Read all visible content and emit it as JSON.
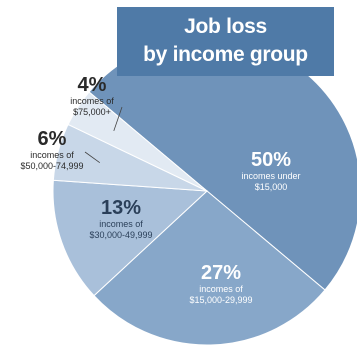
{
  "chart_data": {
    "type": "pie",
    "title_lines": [
      "Job loss",
      "by income group"
    ],
    "slices": [
      {
        "value": 50,
        "pct_label": "50%",
        "label_lines": [
          "incomes under",
          "$15,000"
        ],
        "color": "#6f93ba",
        "text_color": "#ffffff"
      },
      {
        "value": 27,
        "pct_label": "27%",
        "label_lines": [
          "incomes of",
          "$15,000-29,999"
        ],
        "color": "#87a7c9",
        "text_color": "#ffffff"
      },
      {
        "value": 13,
        "pct_label": "13%",
        "label_lines": [
          "incomes of",
          "$30,000-49,999"
        ],
        "color": "#a9c0da",
        "text_color": "#2a3f59"
      },
      {
        "value": 6,
        "pct_label": "6%",
        "label_lines": [
          "incomes of",
          "$50,000-74,999"
        ],
        "color": "#c8d7e8",
        "text_color": "#2a2a2a"
      },
      {
        "value": 4,
        "pct_label": "4%",
        "label_lines": [
          "incomes of",
          "$75,000+"
        ],
        "color": "#e2eaf3",
        "text_color": "#2a2a2a"
      }
    ]
  }
}
